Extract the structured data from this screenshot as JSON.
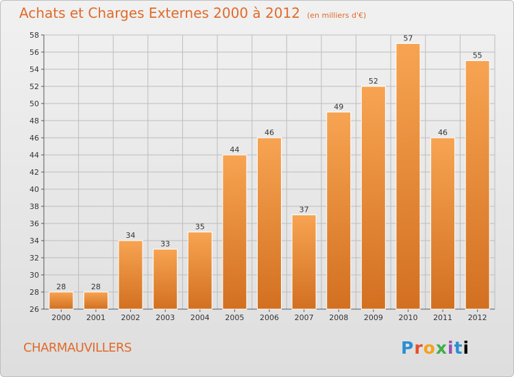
{
  "header": {
    "title": "Achats et Charges Externes 2000 à 2012",
    "subtitle": "(en milliers d'€)"
  },
  "footer": {
    "commune": "CHARMAUVILLERS",
    "logo_text": "Proxiti"
  },
  "colors": {
    "accent": "#e06a2a",
    "bar_light": "#f7a452",
    "bar_dark": "#d27020",
    "grid": "#bcbcbc"
  },
  "chart_data": {
    "type": "bar",
    "title": "Achats et Charges Externes 2000 à 2012",
    "subtitle": "(en milliers d'€)",
    "categories": [
      "2000",
      "2001",
      "2002",
      "2003",
      "2004",
      "2005",
      "2006",
      "2007",
      "2008",
      "2009",
      "2010",
      "2011",
      "2012"
    ],
    "values": [
      28,
      28,
      34,
      33,
      35,
      44,
      46,
      37,
      49,
      52,
      57,
      46,
      55
    ],
    "ylim": [
      26,
      58
    ],
    "ytick_step": 2,
    "grid": true,
    "legend": "none"
  }
}
